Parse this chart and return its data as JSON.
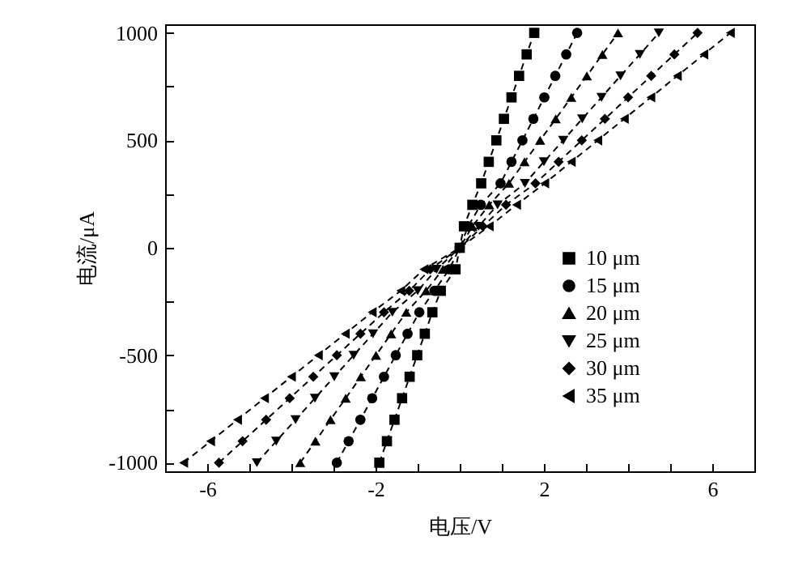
{
  "chart_data": {
    "type": "line",
    "xlabel": "电压/V",
    "ylabel": "电流/μA",
    "xlim": [
      -7,
      7
    ],
    "ylim": [
      -1040,
      1040
    ],
    "xticks": [
      {
        "value": -7,
        "label": null
      },
      -6,
      {
        "value": -5,
        "label": null
      },
      {
        "value": -4,
        "label": null
      },
      {
        "value": -3,
        "label": null
      },
      -2,
      {
        "value": -1,
        "label": null
      },
      {
        "value": 0,
        "label": null
      },
      {
        "value": 1,
        "label": null
      },
      2,
      {
        "value": 3,
        "label": null
      },
      {
        "value": 4,
        "label": null
      },
      {
        "value": 5,
        "label": null
      },
      6,
      {
        "value": 7,
        "label": null
      }
    ],
    "yticks": [
      -1000,
      {
        "value": -750,
        "label": null
      },
      -500,
      {
        "value": -250,
        "label": null
      },
      0,
      {
        "value": 250,
        "label": null
      },
      500,
      {
        "value": 750,
        "label": null
      },
      1000
    ],
    "grid": false,
    "legend": "right",
    "line_style": "dashed",
    "series": [
      {
        "name": "10 μm",
        "color": "#000000",
        "marker": "square",
        "x": [
          -1.91,
          -1.73,
          -1.55,
          -1.37,
          -1.19,
          -1.01,
          -0.83,
          -0.65,
          -0.45,
          -0.1,
          0,
          0.1,
          0.3,
          0.51,
          0.69,
          0.87,
          1.05,
          1.23,
          1.41,
          1.59,
          1.77
        ],
        "values": [
          -1000,
          -900,
          -800,
          -700,
          -600,
          -500,
          -400,
          -300,
          -200,
          -100,
          0,
          100,
          200,
          300,
          400,
          500,
          600,
          700,
          800,
          900,
          1000
        ]
      },
      {
        "name": "15 μm",
        "color": "#000000",
        "marker": "circle",
        "x": [
          -2.92,
          -2.64,
          -2.36,
          -2.08,
          -1.8,
          -1.52,
          -1.24,
          -0.96,
          -0.6,
          -0.25,
          0,
          0.2,
          0.5,
          0.97,
          1.23,
          1.49,
          1.75,
          2.01,
          2.27,
          2.53,
          2.79
        ],
        "values": [
          -1000,
          -900,
          -800,
          -700,
          -600,
          -500,
          -400,
          -300,
          -200,
          -100,
          0,
          100,
          200,
          300,
          400,
          500,
          600,
          700,
          800,
          900,
          1000
        ]
      },
      {
        "name": "20 μm",
        "color": "#000000",
        "marker": "triangle",
        "x": [
          -3.79,
          -3.43,
          -3.07,
          -2.71,
          -2.35,
          -1.99,
          -1.63,
          -1.27,
          -0.8,
          -0.4,
          0,
          0.3,
          0.7,
          1.17,
          1.54,
          1.91,
          2.28,
          2.65,
          3.02,
          3.39,
          3.76
        ],
        "values": [
          -1000,
          -900,
          -800,
          -700,
          -600,
          -500,
          -400,
          -300,
          -200,
          -100,
          0,
          100,
          200,
          300,
          400,
          500,
          600,
          700,
          800,
          900,
          1000
        ]
      },
      {
        "name": "25 μm",
        "color": "#000000",
        "marker": "triangle-down",
        "x": [
          -4.82,
          -4.36,
          -3.9,
          -3.44,
          -2.98,
          -2.52,
          -2.06,
          -1.6,
          -1.0,
          -0.55,
          0,
          0.45,
          0.9,
          1.55,
          2.0,
          2.46,
          2.91,
          3.37,
          3.82,
          4.28,
          4.73
        ],
        "values": [
          -1000,
          -900,
          -800,
          -700,
          -600,
          -500,
          -400,
          -300,
          -200,
          -100,
          0,
          100,
          200,
          300,
          400,
          500,
          600,
          700,
          800,
          900,
          1000
        ]
      },
      {
        "name": "30 μm",
        "color": "#000000",
        "marker": "diamond",
        "x": [
          -5.72,
          -5.16,
          -4.6,
          -4.04,
          -3.48,
          -2.92,
          -2.36,
          -1.8,
          -1.2,
          -0.7,
          0,
          0.55,
          1.1,
          1.8,
          2.35,
          2.9,
          3.45,
          4.0,
          4.55,
          5.1,
          5.65
        ],
        "values": [
          -1000,
          -900,
          -800,
          -700,
          -600,
          -500,
          -400,
          -300,
          -200,
          -100,
          0,
          100,
          200,
          300,
          400,
          500,
          600,
          700,
          800,
          900,
          1000
        ]
      },
      {
        "name": "35 μm",
        "color": "#000000",
        "marker": "triangle-left",
        "x": [
          -6.56,
          -5.92,
          -5.28,
          -4.64,
          -4.0,
          -3.36,
          -2.72,
          -2.08,
          -1.4,
          -0.85,
          0,
          0.7,
          1.35,
          2.02,
          2.65,
          3.28,
          3.91,
          4.54,
          5.17,
          5.8,
          6.43
        ],
        "values": [
          -1000,
          -900,
          -800,
          -700,
          -600,
          -500,
          -400,
          -300,
          -200,
          -100,
          0,
          100,
          200,
          300,
          400,
          500,
          600,
          700,
          800,
          900,
          1000
        ]
      }
    ]
  }
}
